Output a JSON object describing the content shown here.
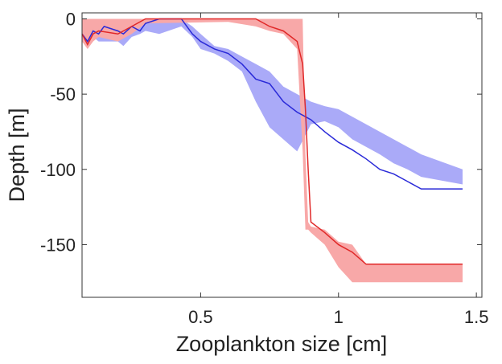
{
  "chart_data": {
    "type": "line",
    "x_label": "Zooplankton size [cm]",
    "y_label": "Depth [m]",
    "xlim": [
      0.07,
      1.52
    ],
    "ylim": [
      -185,
      4
    ],
    "xticks": [
      0.5,
      1,
      1.5
    ],
    "yticks": [
      -150,
      -100,
      -50,
      0
    ],
    "series": [
      {
        "color": "#2a2ad8",
        "band_color": "#aaaaf8",
        "x": [
          0.07,
          0.09,
          0.11,
          0.13,
          0.15,
          0.2,
          0.22,
          0.25,
          0.28,
          0.3,
          0.35,
          0.43,
          0.47,
          0.5,
          0.55,
          0.6,
          0.65,
          0.7,
          0.75,
          0.8,
          0.85,
          0.9,
          0.95,
          1.0,
          1.05,
          1.1,
          1.15,
          1.2,
          1.25,
          1.3,
          1.45
        ],
        "values": [
          -10,
          -15,
          -8,
          -10,
          -5,
          -8,
          -10,
          -5,
          -8,
          -3,
          0,
          0,
          -10,
          -15,
          -20,
          -23,
          -30,
          -40,
          -43,
          -55,
          -62,
          -67,
          -75,
          -82,
          -87,
          -93,
          -100,
          -103,
          -108,
          -113,
          -113
        ],
        "band_upper": [
          -8,
          -10,
          -5,
          -5,
          -3,
          -5,
          -5,
          -3,
          -3,
          0,
          0,
          0,
          -5,
          -10,
          -18,
          -20,
          -25,
          -30,
          -35,
          -45,
          -50,
          -55,
          -58,
          -60,
          -65,
          -70,
          -75,
          -80,
          -85,
          -90,
          -100
        ],
        "band_lower": [
          -12,
          -18,
          -12,
          -15,
          -15,
          -15,
          -18,
          -12,
          -10,
          -8,
          -10,
          -5,
          -12,
          -20,
          -23,
          -28,
          -35,
          -55,
          -72,
          -80,
          -88,
          -70,
          -68,
          -72,
          -80,
          -85,
          -90,
          -96,
          -100,
          -105,
          -110
        ]
      },
      {
        "color": "#e02828",
        "band_color": "#f8a8a8",
        "x": [
          0.07,
          0.09,
          0.11,
          0.13,
          0.2,
          0.25,
          0.3,
          0.6,
          0.7,
          0.75,
          0.8,
          0.85,
          0.87,
          0.88,
          0.89,
          0.9,
          0.95,
          1.0,
          1.05,
          1.1,
          1.45
        ],
        "values": [
          -10,
          -17,
          -10,
          -8,
          -10,
          -5,
          0,
          0,
          0,
          -5,
          -8,
          -15,
          -30,
          -60,
          -100,
          -135,
          -142,
          -150,
          -155,
          -163,
          -163
        ],
        "band_upper": [
          0,
          0,
          0,
          0,
          0,
          0,
          0,
          0,
          0,
          0,
          0,
          0,
          0,
          -90,
          -135,
          -138,
          -140,
          -148,
          -150,
          -163,
          -163
        ],
        "band_lower": [
          -15,
          -20,
          -15,
          -12,
          -15,
          -10,
          -3,
          -2,
          -5,
          -8,
          -10,
          -20,
          -88,
          -140,
          -140,
          -142,
          -150,
          -165,
          -175,
          -175,
          -175
        ]
      }
    ]
  }
}
